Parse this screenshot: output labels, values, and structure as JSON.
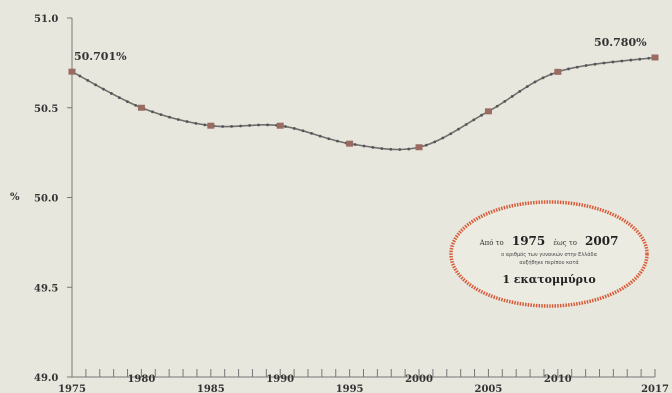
{
  "chart_data": {
    "type": "line",
    "x": [
      1975,
      1980,
      1985,
      1990,
      1995,
      2000,
      2005,
      2010,
      2017
    ],
    "series": [
      {
        "values": [
          50.701,
          50.5,
          50.4,
          50.4,
          50.3,
          50.28,
          50.48,
          50.7,
          50.78
        ]
      }
    ],
    "ylabel": "%",
    "ylim": [
      49.0,
      51.0
    ],
    "yticks": [
      49.0,
      49.5,
      50.0,
      50.5,
      51.0
    ],
    "ytick_labels": [
      "49.0",
      "49.5",
      "50.0",
      "50.5",
      "51.0"
    ],
    "xticks": [
      1975,
      1980,
      1985,
      1990,
      1995,
      2000,
      2005,
      2010,
      2017
    ],
    "xtick_labels": [
      "1975",
      "1980",
      "1985",
      "1990",
      "1995",
      "2000",
      "2005",
      "2010",
      "2017"
    ],
    "start_label": "50.701%",
    "end_label": "50.780%",
    "grid": false,
    "colors": {
      "line": "#6f6f6f",
      "marker": "#9a6b60",
      "ellipse": "#d85a38",
      "background": "#e8e7dd"
    }
  },
  "note": {
    "line1_prefix": "Από το",
    "line1_year1": "1975",
    "line1_mid": "έως το",
    "line1_year2": "2007",
    "line2": "ο αριθμός των γυναικών στην Ελλάδα",
    "line3": "αυξήθηκε περίπου κατά",
    "line4": "1 εκατομμύριο"
  }
}
